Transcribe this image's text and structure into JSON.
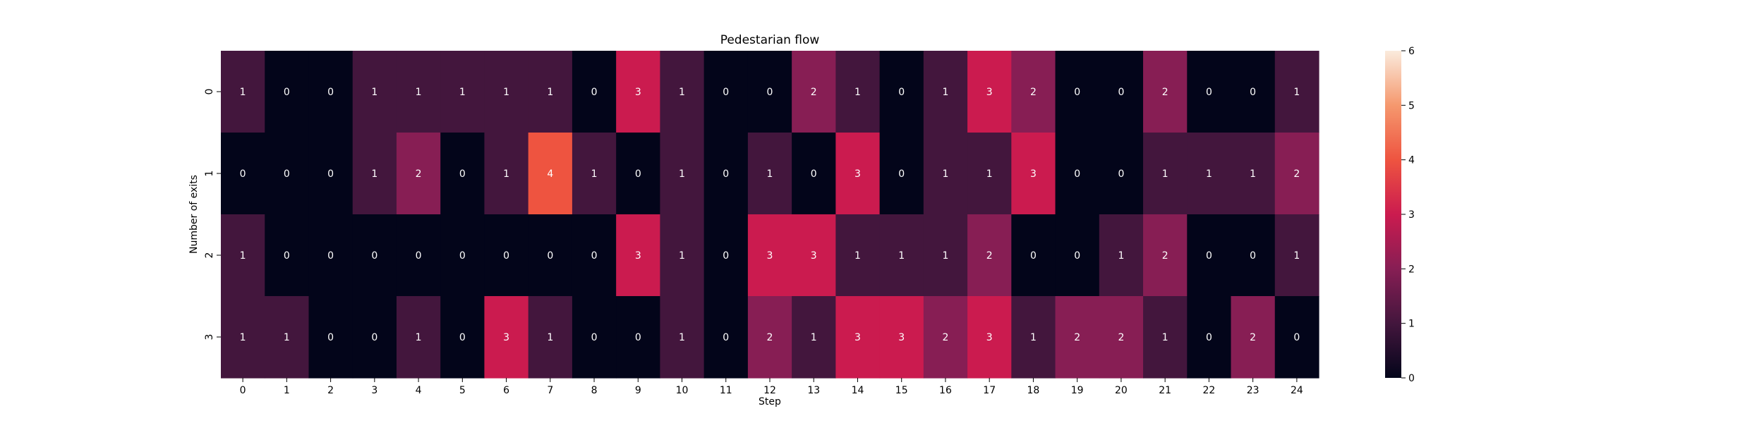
{
  "chart_data": {
    "type": "heatmap",
    "title": "Pedestarian flow",
    "xlabel": "Step",
    "ylabel": "Number of exits",
    "x": [
      "0",
      "1",
      "2",
      "3",
      "4",
      "5",
      "6",
      "7",
      "8",
      "9",
      "10",
      "11",
      "12",
      "13",
      "14",
      "15",
      "16",
      "17",
      "18",
      "19",
      "20",
      "21",
      "22",
      "23",
      "24"
    ],
    "y": [
      "0",
      "1",
      "2",
      "3"
    ],
    "values": [
      [
        1,
        0,
        0,
        1,
        1,
        1,
        1,
        1,
        0,
        3,
        1,
        0,
        0,
        2,
        1,
        0,
        1,
        3,
        2,
        0,
        0,
        2,
        0,
        0,
        1
      ],
      [
        0,
        0,
        0,
        1,
        2,
        0,
        1,
        4,
        1,
        0,
        1,
        0,
        1,
        0,
        3,
        0,
        1,
        1,
        3,
        0,
        0,
        1,
        1,
        1,
        2
      ],
      [
        1,
        0,
        0,
        0,
        0,
        0,
        0,
        0,
        0,
        3,
        1,
        0,
        3,
        3,
        1,
        1,
        1,
        2,
        0,
        0,
        1,
        2,
        0,
        0,
        1
      ],
      [
        1,
        1,
        0,
        0,
        1,
        0,
        3,
        1,
        0,
        0,
        1,
        0,
        2,
        1,
        3,
        3,
        2,
        3,
        1,
        2,
        2,
        1,
        0,
        2,
        0
      ]
    ],
    "colorbar": {
      "range": [
        0,
        6
      ],
      "ticks": [
        "0",
        "1",
        "2",
        "3",
        "4",
        "5",
        "6"
      ]
    },
    "colormap": "rocket",
    "annotations": true,
    "grid": false,
    "legend": "none"
  }
}
